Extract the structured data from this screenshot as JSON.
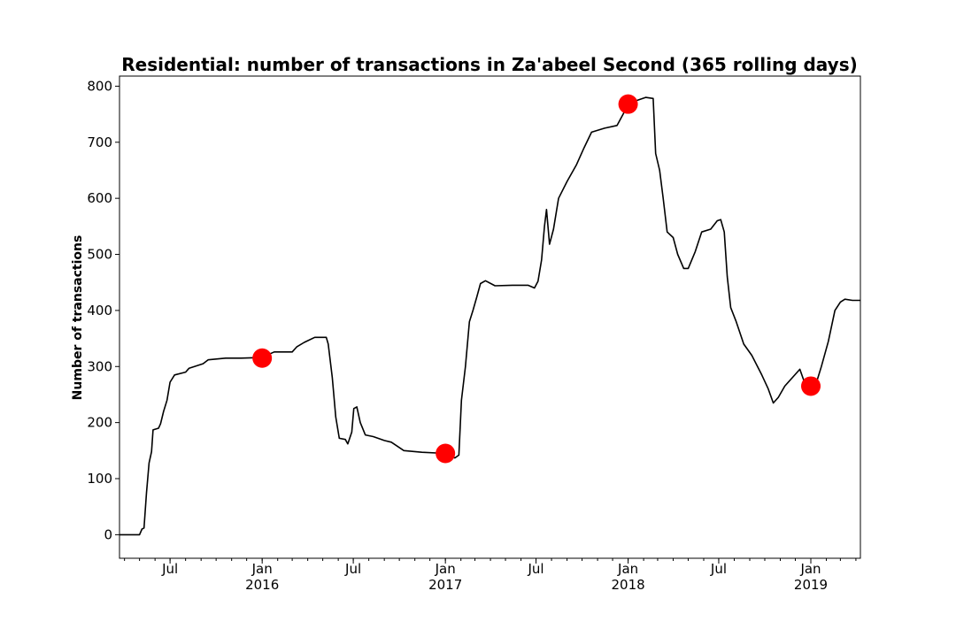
{
  "chart_data": {
    "type": "line",
    "title": "Residential: number of transactions in Za'abeel Second (365 rolling days)",
    "xlabel": "",
    "ylabel": "Number of transactions",
    "ylim": [
      -42,
      818
    ],
    "xlim": [
      "2015-03-22",
      "2019-04-10"
    ],
    "grid": false,
    "y_ticks": [
      0,
      100,
      200,
      300,
      400,
      500,
      600,
      700,
      800
    ],
    "x_ticks": [
      {
        "date": "2015-07-01",
        "label": "Jul",
        "sublabel": ""
      },
      {
        "date": "2016-01-01",
        "label": "Jan",
        "sublabel": "2016"
      },
      {
        "date": "2016-07-01",
        "label": "Jul",
        "sublabel": ""
      },
      {
        "date": "2017-01-01",
        "label": "Jan",
        "sublabel": "2017"
      },
      {
        "date": "2017-07-01",
        "label": "Jul",
        "sublabel": ""
      },
      {
        "date": "2018-01-01",
        "label": "Jan",
        "sublabel": "2018"
      },
      {
        "date": "2018-07-01",
        "label": "Jul",
        "sublabel": ""
      },
      {
        "date": "2019-01-01",
        "label": "Jan",
        "sublabel": "2019"
      }
    ],
    "series": [
      {
        "color": "#000000",
        "points": [
          [
            "2015-03-22",
            0
          ],
          [
            "2015-05-01",
            0
          ],
          [
            "2015-05-06",
            10
          ],
          [
            "2015-05-10",
            12
          ],
          [
            "2015-05-15",
            75
          ],
          [
            "2015-05-20",
            128
          ],
          [
            "2015-05-25",
            148
          ],
          [
            "2015-05-28",
            187
          ],
          [
            "2015-06-08",
            190
          ],
          [
            "2015-06-12",
            198
          ],
          [
            "2015-06-18",
            220
          ],
          [
            "2015-06-25",
            240
          ],
          [
            "2015-07-01",
            272
          ],
          [
            "2015-07-10",
            285
          ],
          [
            "2015-08-01",
            290
          ],
          [
            "2015-08-08",
            297
          ],
          [
            "2015-09-05",
            305
          ],
          [
            "2015-09-15",
            312
          ],
          [
            "2015-10-20",
            315
          ],
          [
            "2015-11-20",
            315
          ],
          [
            "2016-01-01",
            316
          ],
          [
            "2016-01-15",
            322
          ],
          [
            "2016-01-25",
            326
          ],
          [
            "2016-03-01",
            326
          ],
          [
            "2016-03-10",
            335
          ],
          [
            "2016-03-25",
            343
          ],
          [
            "2016-04-15",
            352
          ],
          [
            "2016-05-08",
            352
          ],
          [
            "2016-05-12",
            340
          ],
          [
            "2016-05-20",
            280
          ],
          [
            "2016-05-27",
            210
          ],
          [
            "2016-06-03",
            172
          ],
          [
            "2016-06-15",
            170
          ],
          [
            "2016-06-20",
            162
          ],
          [
            "2016-06-28",
            183
          ],
          [
            "2016-07-02",
            225
          ],
          [
            "2016-07-08",
            228
          ],
          [
            "2016-07-15",
            200
          ],
          [
            "2016-07-25",
            178
          ],
          [
            "2016-08-10",
            175
          ],
          [
            "2016-09-01",
            168
          ],
          [
            "2016-09-15",
            165
          ],
          [
            "2016-10-10",
            150
          ],
          [
            "2016-11-15",
            147
          ],
          [
            "2017-01-01",
            145
          ],
          [
            "2017-01-20",
            137
          ],
          [
            "2017-01-28",
            142
          ],
          [
            "2017-02-02",
            240
          ],
          [
            "2017-02-10",
            300
          ],
          [
            "2017-02-18",
            380
          ],
          [
            "2017-02-25",
            400
          ],
          [
            "2017-03-05",
            425
          ],
          [
            "2017-03-12",
            448
          ],
          [
            "2017-03-22",
            453
          ],
          [
            "2017-04-10",
            444
          ],
          [
            "2017-05-15",
            445
          ],
          [
            "2017-06-15",
            445
          ],
          [
            "2017-06-28",
            440
          ],
          [
            "2017-07-05",
            452
          ],
          [
            "2017-07-12",
            490
          ],
          [
            "2017-07-18",
            550
          ],
          [
            "2017-07-22",
            580
          ],
          [
            "2017-07-28",
            518
          ],
          [
            "2017-08-05",
            545
          ],
          [
            "2017-08-15",
            600
          ],
          [
            "2017-09-01",
            630
          ],
          [
            "2017-09-20",
            660
          ],
          [
            "2017-10-05",
            690
          ],
          [
            "2017-10-20",
            718
          ],
          [
            "2017-11-15",
            725
          ],
          [
            "2017-12-10",
            730
          ],
          [
            "2017-12-28",
            760
          ],
          [
            "2018-01-01",
            768
          ],
          [
            "2018-01-20",
            775
          ],
          [
            "2018-02-05",
            780
          ],
          [
            "2018-02-20",
            778
          ],
          [
            "2018-02-25",
            680
          ],
          [
            "2018-03-05",
            650
          ],
          [
            "2018-03-12",
            600
          ],
          [
            "2018-03-20",
            540
          ],
          [
            "2018-04-01",
            530
          ],
          [
            "2018-04-10",
            500
          ],
          [
            "2018-04-22",
            475
          ],
          [
            "2018-05-01",
            475
          ],
          [
            "2018-05-15",
            505
          ],
          [
            "2018-05-28",
            540
          ],
          [
            "2018-06-15",
            545
          ],
          [
            "2018-06-28",
            560
          ],
          [
            "2018-07-05",
            562
          ],
          [
            "2018-07-12",
            540
          ],
          [
            "2018-07-18",
            460
          ],
          [
            "2018-07-25",
            405
          ],
          [
            "2018-08-05",
            380
          ],
          [
            "2018-08-20",
            340
          ],
          [
            "2018-09-05",
            320
          ],
          [
            "2018-09-25",
            285
          ],
          [
            "2018-10-08",
            260
          ],
          [
            "2018-10-18",
            235
          ],
          [
            "2018-10-28",
            245
          ],
          [
            "2018-11-10",
            265
          ],
          [
            "2018-11-25",
            280
          ],
          [
            "2018-12-10",
            295
          ],
          [
            "2018-12-18",
            275
          ],
          [
            "2018-12-28",
            265
          ],
          [
            "2019-01-10",
            265
          ],
          [
            "2019-01-22",
            300
          ],
          [
            "2019-02-05",
            345
          ],
          [
            "2019-02-18",
            400
          ],
          [
            "2019-03-01",
            415
          ],
          [
            "2019-03-10",
            420
          ],
          [
            "2019-03-25",
            418
          ],
          [
            "2019-04-10",
            418
          ]
        ]
      }
    ],
    "markers": {
      "color": "#ff0000",
      "points": [
        [
          "2016-01-01",
          315
        ],
        [
          "2017-01-01",
          145
        ],
        [
          "2018-01-01",
          768
        ],
        [
          "2019-01-01",
          265
        ]
      ]
    }
  }
}
